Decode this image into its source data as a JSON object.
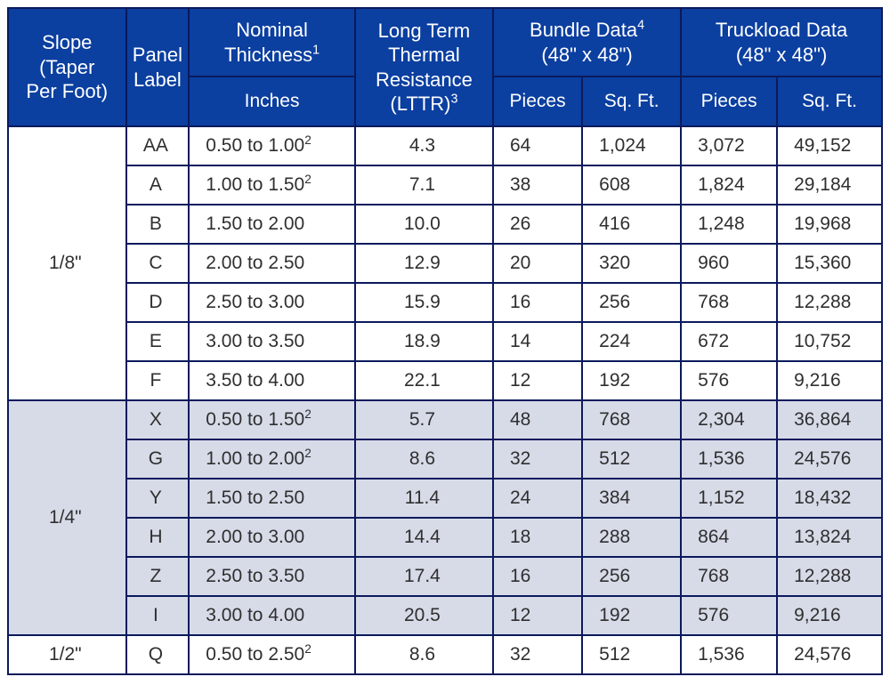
{
  "table": {
    "type": "table",
    "colors": {
      "header_bg": "#0b3fa0",
      "header_text": "#ffffff",
      "border": "#0a1a5c",
      "row_bg": "#ffffff",
      "row_shade_bg": "#d7dbe8",
      "body_text": "#2f2f2f"
    },
    "font": {
      "family": "Arial",
      "header_size_pt": 16,
      "body_size_pt": 15
    },
    "columns": [
      {
        "key": "slope",
        "width_pct": 13.5,
        "align": "center"
      },
      {
        "key": "label",
        "width_pct": 7.2,
        "align": "center"
      },
      {
        "key": "thickness",
        "width_pct": 19,
        "align": "left"
      },
      {
        "key": "lttr",
        "width_pct": 15.8,
        "align": "center"
      },
      {
        "key": "bundle_pieces",
        "width_pct": 10.2,
        "align": "left"
      },
      {
        "key": "bundle_sqft",
        "width_pct": 11.3,
        "align": "left"
      },
      {
        "key": "truck_pieces",
        "width_pct": 11,
        "align": "left"
      },
      {
        "key": "truck_sqft",
        "width_pct": 12,
        "align": "left"
      }
    ],
    "header": {
      "slope": "Slope\n(Taper\nPer Foot)",
      "panel": "Panel\nLabel",
      "thickness_group": "Nominal\nThickness",
      "thickness_group_sup": "1",
      "thickness_sub": "Inches",
      "lttr": "Long Term\nThermal\nResistance\n(LTTR)",
      "lttr_sup": "3",
      "bundle_group": "Bundle Data",
      "bundle_group_sup": "4",
      "bundle_group_sub": "(48\" x 48\")",
      "truck_group": "Truckload Data",
      "truck_group_sub": "(48\" x 48\")",
      "pieces": "Pieces",
      "sqft": "Sq. Ft."
    },
    "groups": [
      {
        "slope": "1/8\"",
        "shaded": false,
        "rows": [
          {
            "label": "AA",
            "thickness": "0.50 to 1.00",
            "thickness_sup": "2",
            "lttr": "4.3",
            "bundle_pieces": "64",
            "bundle_sqft": "1,024",
            "truck_pieces": "3,072",
            "truck_sqft": "49,152"
          },
          {
            "label": "A",
            "thickness": "1.00 to 1.50",
            "thickness_sup": "2",
            "lttr": "7.1",
            "bundle_pieces": "38",
            "bundle_sqft": "608",
            "truck_pieces": "1,824",
            "truck_sqft": "29,184"
          },
          {
            "label": "B",
            "thickness": "1.50 to 2.00",
            "thickness_sup": "",
            "lttr": "10.0",
            "bundle_pieces": "26",
            "bundle_sqft": "416",
            "truck_pieces": "1,248",
            "truck_sqft": "19,968"
          },
          {
            "label": "C",
            "thickness": "2.00 to 2.50",
            "thickness_sup": "",
            "lttr": "12.9",
            "bundle_pieces": "20",
            "bundle_sqft": "320",
            "truck_pieces": "960",
            "truck_sqft": "15,360"
          },
          {
            "label": "D",
            "thickness": "2.50 to 3.00",
            "thickness_sup": "",
            "lttr": "15.9",
            "bundle_pieces": "16",
            "bundle_sqft": "256",
            "truck_pieces": "768",
            "truck_sqft": "12,288"
          },
          {
            "label": "E",
            "thickness": "3.00 to 3.50",
            "thickness_sup": "",
            "lttr": "18.9",
            "bundle_pieces": "14",
            "bundle_sqft": "224",
            "truck_pieces": "672",
            "truck_sqft": "10,752"
          },
          {
            "label": "F",
            "thickness": "3.50 to 4.00",
            "thickness_sup": "",
            "lttr": "22.1",
            "bundle_pieces": "12",
            "bundle_sqft": "192",
            "truck_pieces": "576",
            "truck_sqft": "9,216"
          }
        ]
      },
      {
        "slope": "1/4\"",
        "shaded": true,
        "rows": [
          {
            "label": "X",
            "thickness": "0.50 to 1.50",
            "thickness_sup": "2",
            "lttr": "5.7",
            "bundle_pieces": "48",
            "bundle_sqft": "768",
            "truck_pieces": "2,304",
            "truck_sqft": "36,864"
          },
          {
            "label": "G",
            "thickness": "1.00 to 2.00",
            "thickness_sup": "2",
            "lttr": "8.6",
            "bundle_pieces": "32",
            "bundle_sqft": "512",
            "truck_pieces": "1,536",
            "truck_sqft": "24,576"
          },
          {
            "label": "Y",
            "thickness": "1.50 to 2.50",
            "thickness_sup": "",
            "lttr": "11.4",
            "bundle_pieces": "24",
            "bundle_sqft": "384",
            "truck_pieces": "1,152",
            "truck_sqft": "18,432"
          },
          {
            "label": "H",
            "thickness": "2.00 to 3.00",
            "thickness_sup": "",
            "lttr": "14.4",
            "bundle_pieces": "18",
            "bundle_sqft": "288",
            "truck_pieces": "864",
            "truck_sqft": "13,824"
          },
          {
            "label": "Z",
            "thickness": "2.50 to 3.50",
            "thickness_sup": "",
            "lttr": "17.4",
            "bundle_pieces": "16",
            "bundle_sqft": "256",
            "truck_pieces": "768",
            "truck_sqft": "12,288"
          },
          {
            "label": "I",
            "thickness": "3.00 to 4.00",
            "thickness_sup": "",
            "lttr": "20.5",
            "bundle_pieces": "12",
            "bundle_sqft": "192",
            "truck_pieces": "576",
            "truck_sqft": "9,216"
          }
        ]
      },
      {
        "slope": "1/2\"",
        "shaded": false,
        "rows": [
          {
            "label": "Q",
            "thickness": "0.50 to 2.50",
            "thickness_sup": "2",
            "lttr": "8.6",
            "bundle_pieces": "32",
            "bundle_sqft": "512",
            "truck_pieces": "1,536",
            "truck_sqft": "24,576"
          }
        ]
      }
    ]
  }
}
